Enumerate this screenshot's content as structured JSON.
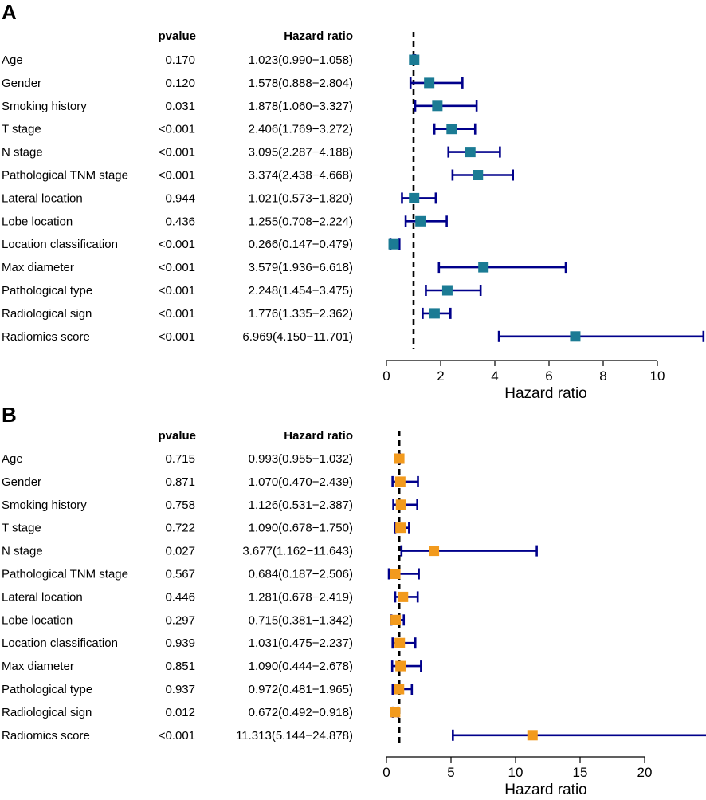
{
  "chart_data": [
    {
      "type": "forest",
      "panel_label": "A",
      "columns": {
        "pvalue": "pvalue",
        "hr": "Hazard ratio"
      },
      "xlabel": "Hazard ratio",
      "xticks": [
        "0",
        "2",
        "4",
        "6",
        "8",
        "10"
      ],
      "xlim": [
        0,
        11.7
      ],
      "reference_line": 1,
      "marker_color": "#1b7b94",
      "ci_color": "#00008b",
      "rows": [
        {
          "label": "Age",
          "pvalue": "0.170",
          "hr_text": "1.023(0.990−1.058)",
          "hr": 1.023,
          "lo": 0.99,
          "hi": 1.058
        },
        {
          "label": "Gender",
          "pvalue": "0.120",
          "hr_text": "1.578(0.888−2.804)",
          "hr": 1.578,
          "lo": 0.888,
          "hi": 2.804
        },
        {
          "label": "Smoking history",
          "pvalue": "0.031",
          "hr_text": "1.878(1.060−3.327)",
          "hr": 1.878,
          "lo": 1.06,
          "hi": 3.327
        },
        {
          "label": "T stage",
          "pvalue": "<0.001",
          "hr_text": "2.406(1.769−3.272)",
          "hr": 2.406,
          "lo": 1.769,
          "hi": 3.272
        },
        {
          "label": "N stage",
          "pvalue": "<0.001",
          "hr_text": "3.095(2.287−4.188)",
          "hr": 3.095,
          "lo": 2.287,
          "hi": 4.188
        },
        {
          "label": "Pathological TNM stage",
          "pvalue": "<0.001",
          "hr_text": "3.374(2.438−4.668)",
          "hr": 3.374,
          "lo": 2.438,
          "hi": 4.668
        },
        {
          "label": "Lateral location",
          "pvalue": "0.944",
          "hr_text": "1.021(0.573−1.820)",
          "hr": 1.021,
          "lo": 0.573,
          "hi": 1.82
        },
        {
          "label": "Lobe location",
          "pvalue": "0.436",
          "hr_text": "1.255(0.708−2.224)",
          "hr": 1.255,
          "lo": 0.708,
          "hi": 2.224
        },
        {
          "label": "Location classification",
          "pvalue": "<0.001",
          "hr_text": "0.266(0.147−0.479)",
          "hr": 0.266,
          "lo": 0.147,
          "hi": 0.479
        },
        {
          "label": "Max diameter",
          "pvalue": "<0.001",
          "hr_text": "3.579(1.936−6.618)",
          "hr": 3.579,
          "lo": 1.936,
          "hi": 6.618
        },
        {
          "label": "Pathological type",
          "pvalue": "<0.001",
          "hr_text": "2.248(1.454−3.475)",
          "hr": 2.248,
          "lo": 1.454,
          "hi": 3.475
        },
        {
          "label": "Radiological sign",
          "pvalue": "<0.001",
          "hr_text": "1.776(1.335−2.362)",
          "hr": 1.776,
          "lo": 1.335,
          "hi": 2.362
        },
        {
          "label": "Radiomics score",
          "pvalue": "<0.001",
          "hr_text": "6.969(4.150−11.701)",
          "hr": 6.969,
          "lo": 4.15,
          "hi": 11.701
        }
      ]
    },
    {
      "type": "forest",
      "panel_label": "B",
      "columns": {
        "pvalue": "pvalue",
        "hr": "Hazard ratio"
      },
      "xlabel": "Hazard ratio",
      "xticks": [
        "0",
        "5",
        "10",
        "15",
        "20"
      ],
      "xlim": [
        0,
        24.9
      ],
      "reference_line": 1,
      "marker_color": "#f29a1d",
      "ci_color": "#00008b",
      "rows": [
        {
          "label": "Age",
          "pvalue": "0.715",
          "hr_text": "0.993(0.955−1.032)",
          "hr": 0.993,
          "lo": 0.955,
          "hi": 1.032
        },
        {
          "label": "Gender",
          "pvalue": "0.871",
          "hr_text": "1.070(0.470−2.439)",
          "hr": 1.07,
          "lo": 0.47,
          "hi": 2.439
        },
        {
          "label": "Smoking history",
          "pvalue": "0.758",
          "hr_text": "1.126(0.531−2.387)",
          "hr": 1.126,
          "lo": 0.531,
          "hi": 2.387
        },
        {
          "label": "T stage",
          "pvalue": "0.722",
          "hr_text": "1.090(0.678−1.750)",
          "hr": 1.09,
          "lo": 0.678,
          "hi": 1.75
        },
        {
          "label": "N stage",
          "pvalue": "0.027",
          "hr_text": "3.677(1.162−11.643)",
          "hr": 3.677,
          "lo": 1.162,
          "hi": 11.643
        },
        {
          "label": "Pathological TNM stage",
          "pvalue": "0.567",
          "hr_text": "0.684(0.187−2.506)",
          "hr": 0.684,
          "lo": 0.187,
          "hi": 2.506
        },
        {
          "label": "Lateral location",
          "pvalue": "0.446",
          "hr_text": "1.281(0.678−2.419)",
          "hr": 1.281,
          "lo": 0.678,
          "hi": 2.419
        },
        {
          "label": "Lobe location",
          "pvalue": "0.297",
          "hr_text": "0.715(0.381−1.342)",
          "hr": 0.715,
          "lo": 0.381,
          "hi": 1.342
        },
        {
          "label": "Location classification",
          "pvalue": "0.939",
          "hr_text": "1.031(0.475−2.237)",
          "hr": 1.031,
          "lo": 0.475,
          "hi": 2.237
        },
        {
          "label": "Max diameter",
          "pvalue": "0.851",
          "hr_text": "1.090(0.444−2.678)",
          "hr": 1.09,
          "lo": 0.444,
          "hi": 2.678
        },
        {
          "label": "Pathological type",
          "pvalue": "0.937",
          "hr_text": "0.972(0.481−1.965)",
          "hr": 0.972,
          "lo": 0.481,
          "hi": 1.965
        },
        {
          "label": "Radiological sign",
          "pvalue": "0.012",
          "hr_text": "0.672(0.492−0.918)",
          "hr": 0.672,
          "lo": 0.492,
          "hi": 0.918
        },
        {
          "label": "Radiomics score",
          "pvalue": "<0.001",
          "hr_text": "11.313(5.144−24.878)",
          "hr": 11.313,
          "lo": 5.144,
          "hi": 24.878
        }
      ]
    }
  ]
}
